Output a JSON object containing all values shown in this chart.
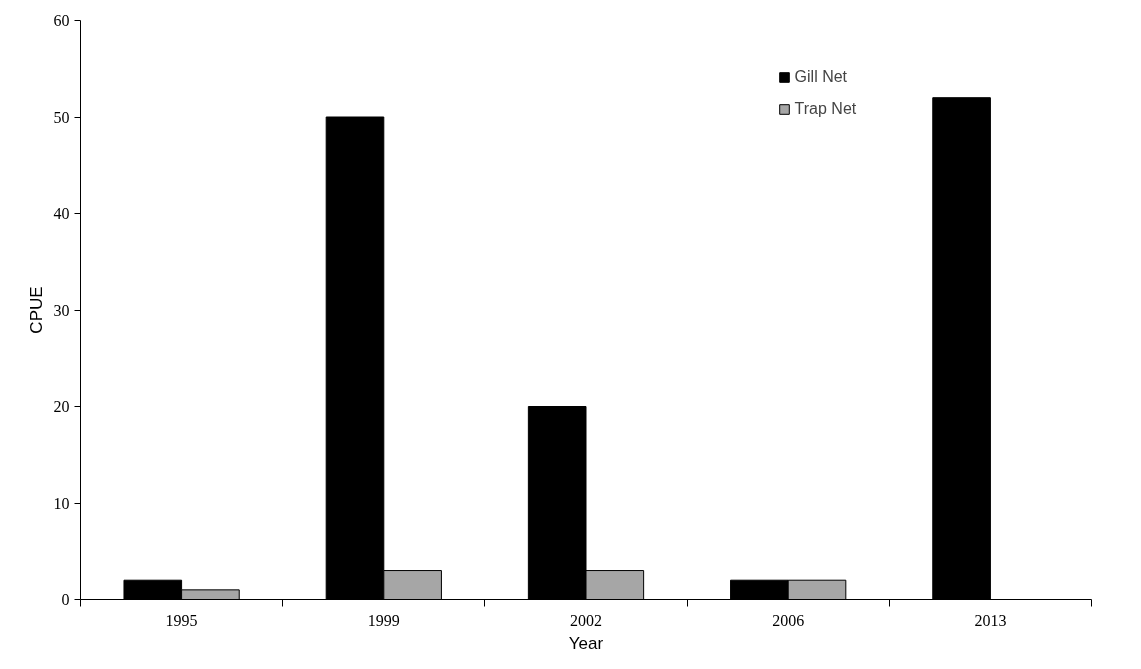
{
  "chart_data": {
    "type": "bar",
    "xlabel": "Year",
    "ylabel": "CPUE",
    "categories": [
      "1995",
      "1999",
      "2002",
      "2006",
      "2013"
    ],
    "series": [
      {
        "name": "Gill Net",
        "color": "#000000",
        "values": [
          2,
          50,
          20,
          2,
          52
        ]
      },
      {
        "name": "Trap Net",
        "color": "#a6a6a6",
        "values": [
          1,
          3,
          3,
          2,
          null
        ]
      }
    ],
    "ylim": [
      0,
      60
    ],
    "yticks": [
      0,
      10,
      20,
      30,
      40,
      50,
      60
    ],
    "grid": false,
    "legend": "top right"
  }
}
